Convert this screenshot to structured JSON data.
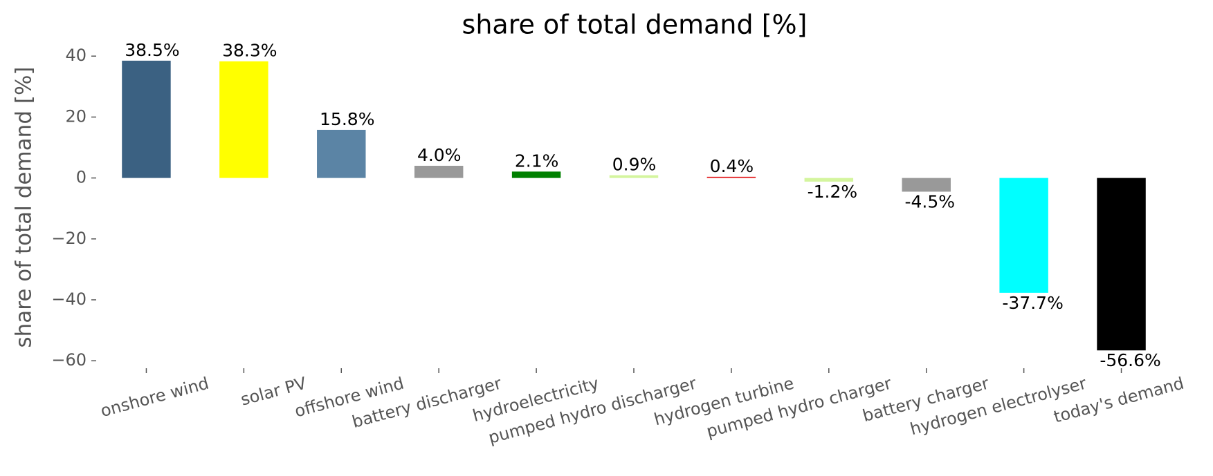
{
  "chart_data": {
    "type": "bar",
    "title": "share of total demand [%]",
    "y_label": "share of total demand [%]",
    "categories": [
      "onshore wind",
      "solar PV",
      "offshore wind",
      "battery discharger",
      "hydroelectricity",
      "pumped hydro discharger",
      "hydrogen turbine",
      "pumped hydro charger",
      "battery charger",
      "hydrogen electrolyser",
      "today's demand"
    ],
    "values": [
      38.5,
      38.3,
      15.8,
      4.0,
      2.1,
      0.9,
      0.4,
      -1.2,
      -4.5,
      -37.7,
      -56.6
    ],
    "value_labels": [
      "38.5%",
      "38.3%",
      "15.8%",
      "4.0%",
      "2.1%",
      "0.9%",
      "0.4%",
      "-1.2%",
      "-4.5%",
      "-37.7%",
      "-56.6%"
    ],
    "colors": [
      "#3b6182",
      "#ffff00",
      "#5b84a5",
      "#999999",
      "#008000",
      "#d4f59e",
      "#e31a1c",
      "#d4f59e",
      "#999999",
      "#00ffff",
      "#000000"
    ],
    "ylim": [
      -62,
      43
    ],
    "yticks": [
      {
        "value": -60,
        "label": "−60"
      },
      {
        "value": -40,
        "label": "−40"
      },
      {
        "value": -20,
        "label": "−20"
      },
      0,
      20,
      40
    ],
    "grid": false
  }
}
